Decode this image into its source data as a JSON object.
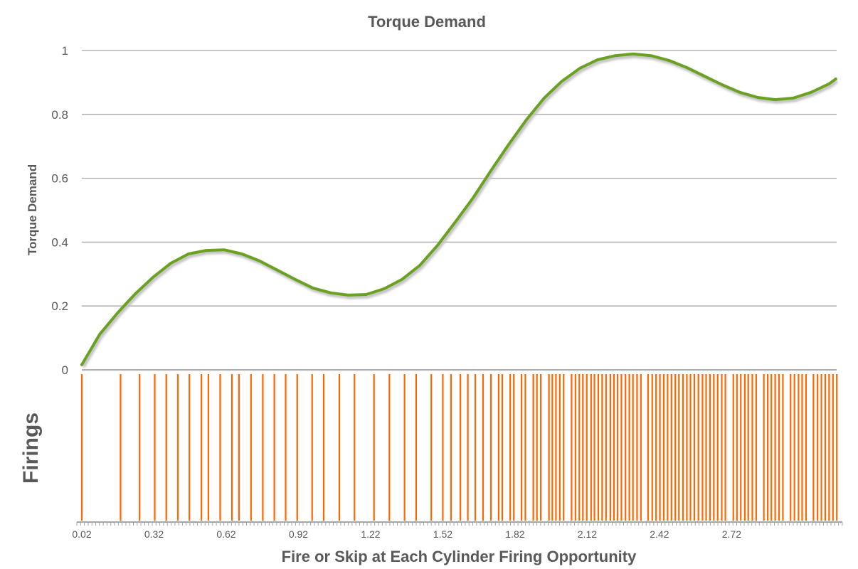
{
  "chart_data": [
    {
      "type": "line",
      "title": "Torque Demand",
      "ylabel": "Torque Demand",
      "xlabel": "",
      "ylim": [
        0,
        1
      ],
      "yticks": [
        "0",
        "0.2",
        "0.4",
        "0.6",
        "0.8",
        "1"
      ],
      "ytick_values": [
        0,
        0.2,
        0.4,
        0.6,
        0.8,
        1
      ],
      "xlim": [
        0.02,
        3.17
      ],
      "grid": true,
      "colors": {
        "line": "#6aa121",
        "grid": "#a6a6a6"
      },
      "series": [
        {
          "name": "Torque Demand",
          "x": [
            0.02,
            0.094,
            0.168,
            0.242,
            0.316,
            0.39,
            0.463,
            0.537,
            0.611,
            0.685,
            0.759,
            0.833,
            0.907,
            0.981,
            1.055,
            1.128,
            1.202,
            1.276,
            1.35,
            1.424,
            1.498,
            1.572,
            1.646,
            1.72,
            1.794,
            1.868,
            1.941,
            2.015,
            2.089,
            2.163,
            2.237,
            2.311,
            2.385,
            2.459,
            2.533,
            2.606,
            2.68,
            2.754,
            2.828,
            2.902,
            2.976,
            3.05,
            3.124,
            3.153
          ],
          "y": [
            0.016,
            0.111,
            0.178,
            0.238,
            0.29,
            0.334,
            0.363,
            0.374,
            0.376,
            0.363,
            0.341,
            0.312,
            0.283,
            0.256,
            0.241,
            0.234,
            0.236,
            0.254,
            0.283,
            0.327,
            0.39,
            0.463,
            0.539,
            0.624,
            0.706,
            0.784,
            0.851,
            0.904,
            0.944,
            0.971,
            0.984,
            0.989,
            0.984,
            0.969,
            0.947,
            0.92,
            0.893,
            0.869,
            0.853,
            0.846,
            0.851,
            0.869,
            0.895,
            0.911
          ]
        }
      ]
    },
    {
      "type": "event",
      "ylabel": "Firings",
      "xlabel": "Fire or Skip at Each Cylinder Firing Opportunity",
      "xlim": [
        0.02,
        3.17
      ],
      "xticks": [
        "0.02",
        "0.32",
        "0.62",
        "0.92",
        "1.22",
        "1.52",
        "1.82",
        "2.12",
        "2.42",
        "2.72"
      ],
      "xtick_values": [
        0.02,
        0.32,
        0.62,
        0.92,
        1.22,
        1.52,
        1.82,
        2.12,
        2.42,
        2.72
      ],
      "colors": {
        "fire": "#ff6600",
        "axis": "#a6a6a6"
      },
      "fires": [
        0.02,
        0.181,
        0.26,
        0.323,
        0.371,
        0.419,
        0.467,
        0.517,
        0.546,
        0.595,
        0.644,
        0.673,
        0.723,
        0.772,
        0.82,
        0.867,
        0.915,
        0.977,
        1.025,
        1.09,
        1.153,
        1.234,
        1.298,
        1.361,
        1.409,
        1.472,
        1.52,
        1.554,
        1.593,
        1.624,
        1.655,
        1.687,
        1.72,
        1.752,
        1.767,
        1.8,
        1.815,
        1.847,
        1.863,
        1.896,
        1.911,
        1.927,
        1.961,
        1.975,
        1.99,
        2.006,
        2.022,
        2.055,
        2.071,
        2.087,
        2.102,
        2.118,
        2.136,
        2.15,
        2.166,
        2.182,
        2.198,
        2.216,
        2.231,
        2.246,
        2.262,
        2.279,
        2.295,
        2.31,
        2.327,
        2.343,
        2.373,
        2.39,
        2.406,
        2.422,
        2.438,
        2.454,
        2.47,
        2.486,
        2.501,
        2.518,
        2.534,
        2.549,
        2.565,
        2.582,
        2.599,
        2.614,
        2.63,
        2.646,
        2.662,
        2.679,
        2.694,
        2.727,
        2.742,
        2.758,
        2.775,
        2.789,
        2.806,
        2.822,
        2.854,
        2.87,
        2.885,
        2.901,
        2.917,
        2.933,
        2.965,
        2.981,
        2.998,
        3.013,
        3.029,
        3.06,
        3.077,
        3.093,
        3.109,
        3.125,
        3.141,
        3.157
      ]
    }
  ]
}
